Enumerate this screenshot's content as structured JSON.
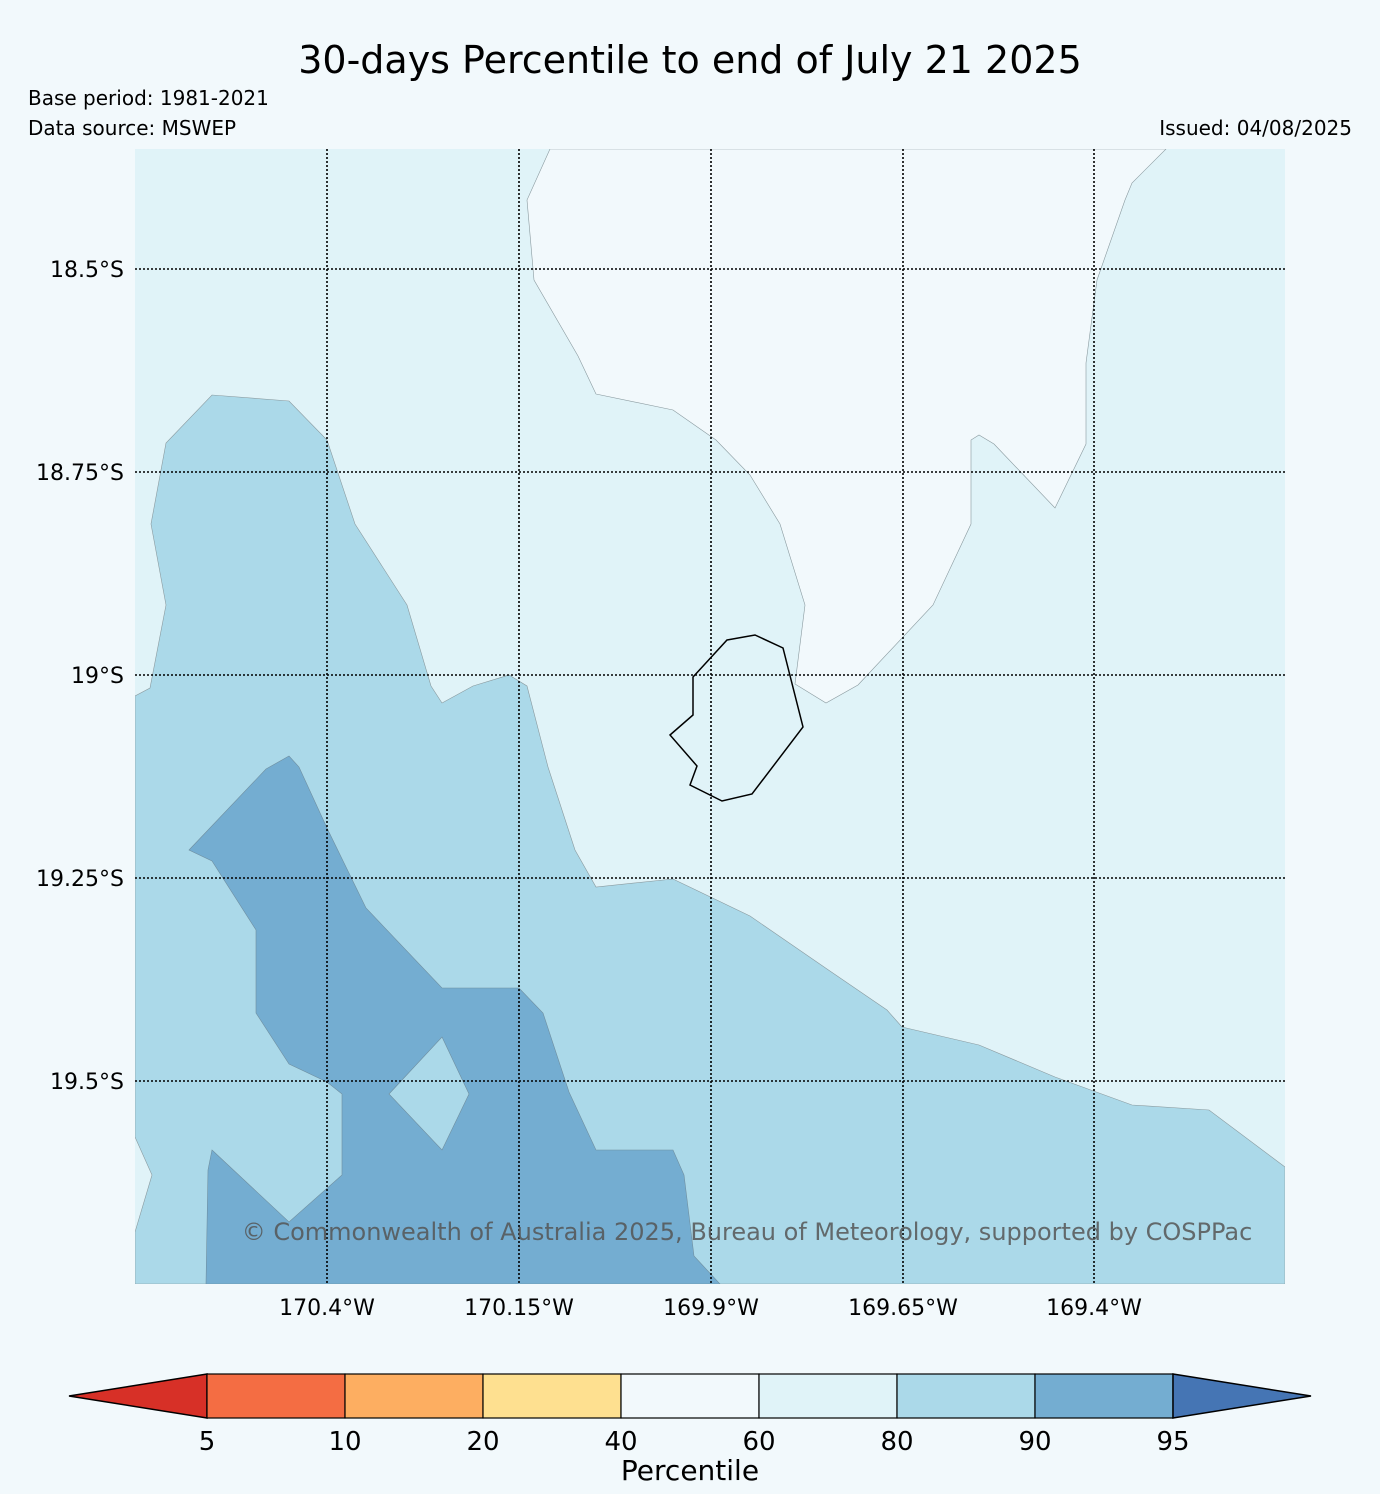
{
  "title": "30-days Percentile to end of July 21 2025",
  "meta": {
    "base_period": "Base period: 1981-2021",
    "data_source": "Data source: MSWEP",
    "issued": "Issued: 04/08/2025"
  },
  "copyright": "© Commonwealth of Australia 2025, Bureau of Meteorology, supported by COSPPac",
  "map": {
    "lat_labels": [
      "18.5°S",
      "18.75°S",
      "19°S",
      "19.25°S",
      "19.5°S"
    ],
    "lon_labels": [
      "170.4°W",
      "170.15°W",
      "169.9°W",
      "169.65°W",
      "169.4°W"
    ],
    "gridlines": "dotted",
    "fill_classes": {
      "60_80": "#e0f3f8",
      "80_90": "#abd9e9",
      "90_95": "#74add1"
    }
  },
  "colorbar": {
    "title": "Percentile",
    "tick_labels": [
      "5",
      "10",
      "20",
      "40",
      "60",
      "80",
      "90",
      "95"
    ],
    "colors": [
      "#d73027",
      "#f46d43",
      "#fdae61",
      "#fee090",
      "#f2f9fc",
      "#e0f3f8",
      "#abd9e9",
      "#74add1",
      "#4575b4"
    ]
  }
}
